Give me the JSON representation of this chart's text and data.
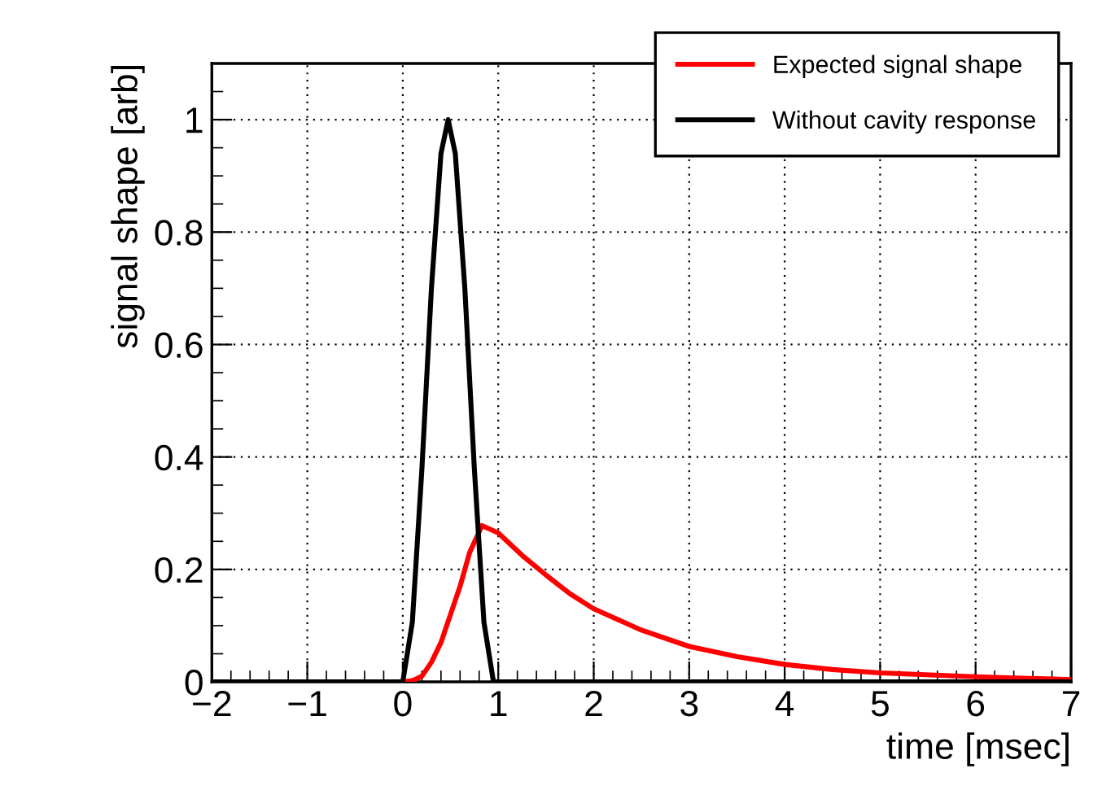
{
  "chart_data": {
    "type": "line",
    "xlabel": "time [msec]",
    "ylabel": "signal shape [arb]",
    "xlim": [
      -2,
      7
    ],
    "ylim": [
      0,
      1.1
    ],
    "xticks": [
      {
        "value": -2,
        "label": "−2"
      },
      {
        "value": -1,
        "label": "−1"
      },
      0,
      1,
      2,
      3,
      4,
      5,
      6,
      7
    ],
    "yticks": [
      0,
      0.2,
      0.4,
      0.6,
      0.8,
      1
    ],
    "grid": true,
    "legend": "top right",
    "marker": "none",
    "line_style": "solid",
    "series": [
      {
        "name": "Expected signal shape",
        "color": "#ff0000",
        "x": [
          -2,
          0,
          0.1,
          0.2,
          0.3,
          0.4,
          0.5,
          0.6,
          0.7,
          0.83,
          1,
          1.25,
          1.5,
          1.75,
          2,
          2.5,
          3,
          3.5,
          4,
          4.5,
          5,
          6,
          7
        ],
        "values": [
          0,
          0,
          0.002,
          0.01,
          0.035,
          0.07,
          0.12,
          0.17,
          0.23,
          0.278,
          0.265,
          0.225,
          0.19,
          0.157,
          0.13,
          0.092,
          0.063,
          0.045,
          0.031,
          0.022,
          0.016,
          0.009,
          0.004
        ]
      },
      {
        "name": "Without cavity response",
        "color": "#000000",
        "x": [
          -2,
          0,
          0.1,
          0.2,
          0.3,
          0.4,
          0.475,
          0.55,
          0.65,
          0.75,
          0.85,
          0.95,
          7
        ],
        "values": [
          0,
          0,
          0.106,
          0.378,
          0.7,
          0.94,
          1,
          0.94,
          0.7,
          0.378,
          0.106,
          0,
          0
        ]
      }
    ]
  }
}
